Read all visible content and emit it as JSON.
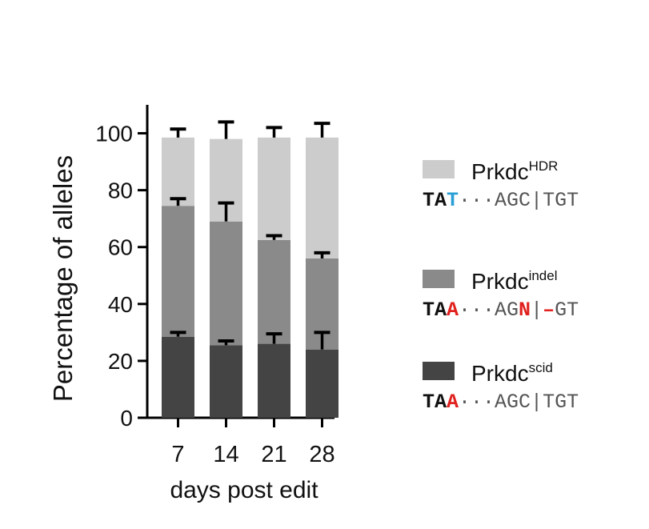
{
  "chart_data": {
    "type": "bar",
    "stacked": true,
    "xlabel": "days post edit",
    "ylabel": "Percentage of alleles",
    "categories": [
      "7",
      "14",
      "21",
      "28"
    ],
    "ylim": [
      0,
      110
    ],
    "yticks": [
      "0",
      "20",
      "40",
      "60",
      "80",
      "100"
    ],
    "series": [
      {
        "name": "Prkdc",
        "superscript": "scid",
        "color": "#444444",
        "values": [
          28.5,
          25.5,
          26,
          24
        ],
        "errors": [
          1.5,
          1.5,
          3.5,
          6
        ],
        "sequence": [
          {
            "text": "TA",
            "color": "#111111",
            "bold": true
          },
          {
            "text": "A",
            "color": "#e0211d",
            "bold": true
          },
          {
            "text": "···AGC",
            "color": "#555555",
            "bold": false
          },
          {
            "text": "|",
            "color": "#555555",
            "bold": false
          },
          {
            "text": "TGT",
            "color": "#555555",
            "bold": false
          }
        ]
      },
      {
        "name": "Prkdc",
        "superscript": "indel",
        "color": "#8a8a8a",
        "values": [
          46,
          43.5,
          36.5,
          32
        ],
        "errors": [
          2.5,
          6.5,
          1.5,
          2
        ],
        "sequence": [
          {
            "text": "TA",
            "color": "#111111",
            "bold": true
          },
          {
            "text": "A",
            "color": "#e0211d",
            "bold": true
          },
          {
            "text": "···AG",
            "color": "#555555",
            "bold": false
          },
          {
            "text": "N",
            "color": "#e0211d",
            "bold": true
          },
          {
            "text": "|",
            "color": "#555555",
            "bold": false
          },
          {
            "text": "–",
            "color": "#e0211d",
            "bold": true
          },
          {
            "text": "GT",
            "color": "#555555",
            "bold": false
          }
        ]
      },
      {
        "name": "Prkdc",
        "superscript": "HDR",
        "color": "#cccccc",
        "values": [
          24,
          29,
          36,
          42.5
        ],
        "errors": [
          3,
          6,
          3.5,
          5
        ],
        "sequence": [
          {
            "text": "TA",
            "color": "#111111",
            "bold": true
          },
          {
            "text": "T",
            "color": "#2a9fd6",
            "bold": true
          },
          {
            "text": "···AGC",
            "color": "#555555",
            "bold": false
          },
          {
            "text": "|",
            "color": "#555555",
            "bold": false
          },
          {
            "text": "TGT",
            "color": "#555555",
            "bold": false
          }
        ]
      }
    ],
    "legend_placement": "right",
    "legend_order": [
      "HDR",
      "indel",
      "scid"
    ]
  }
}
